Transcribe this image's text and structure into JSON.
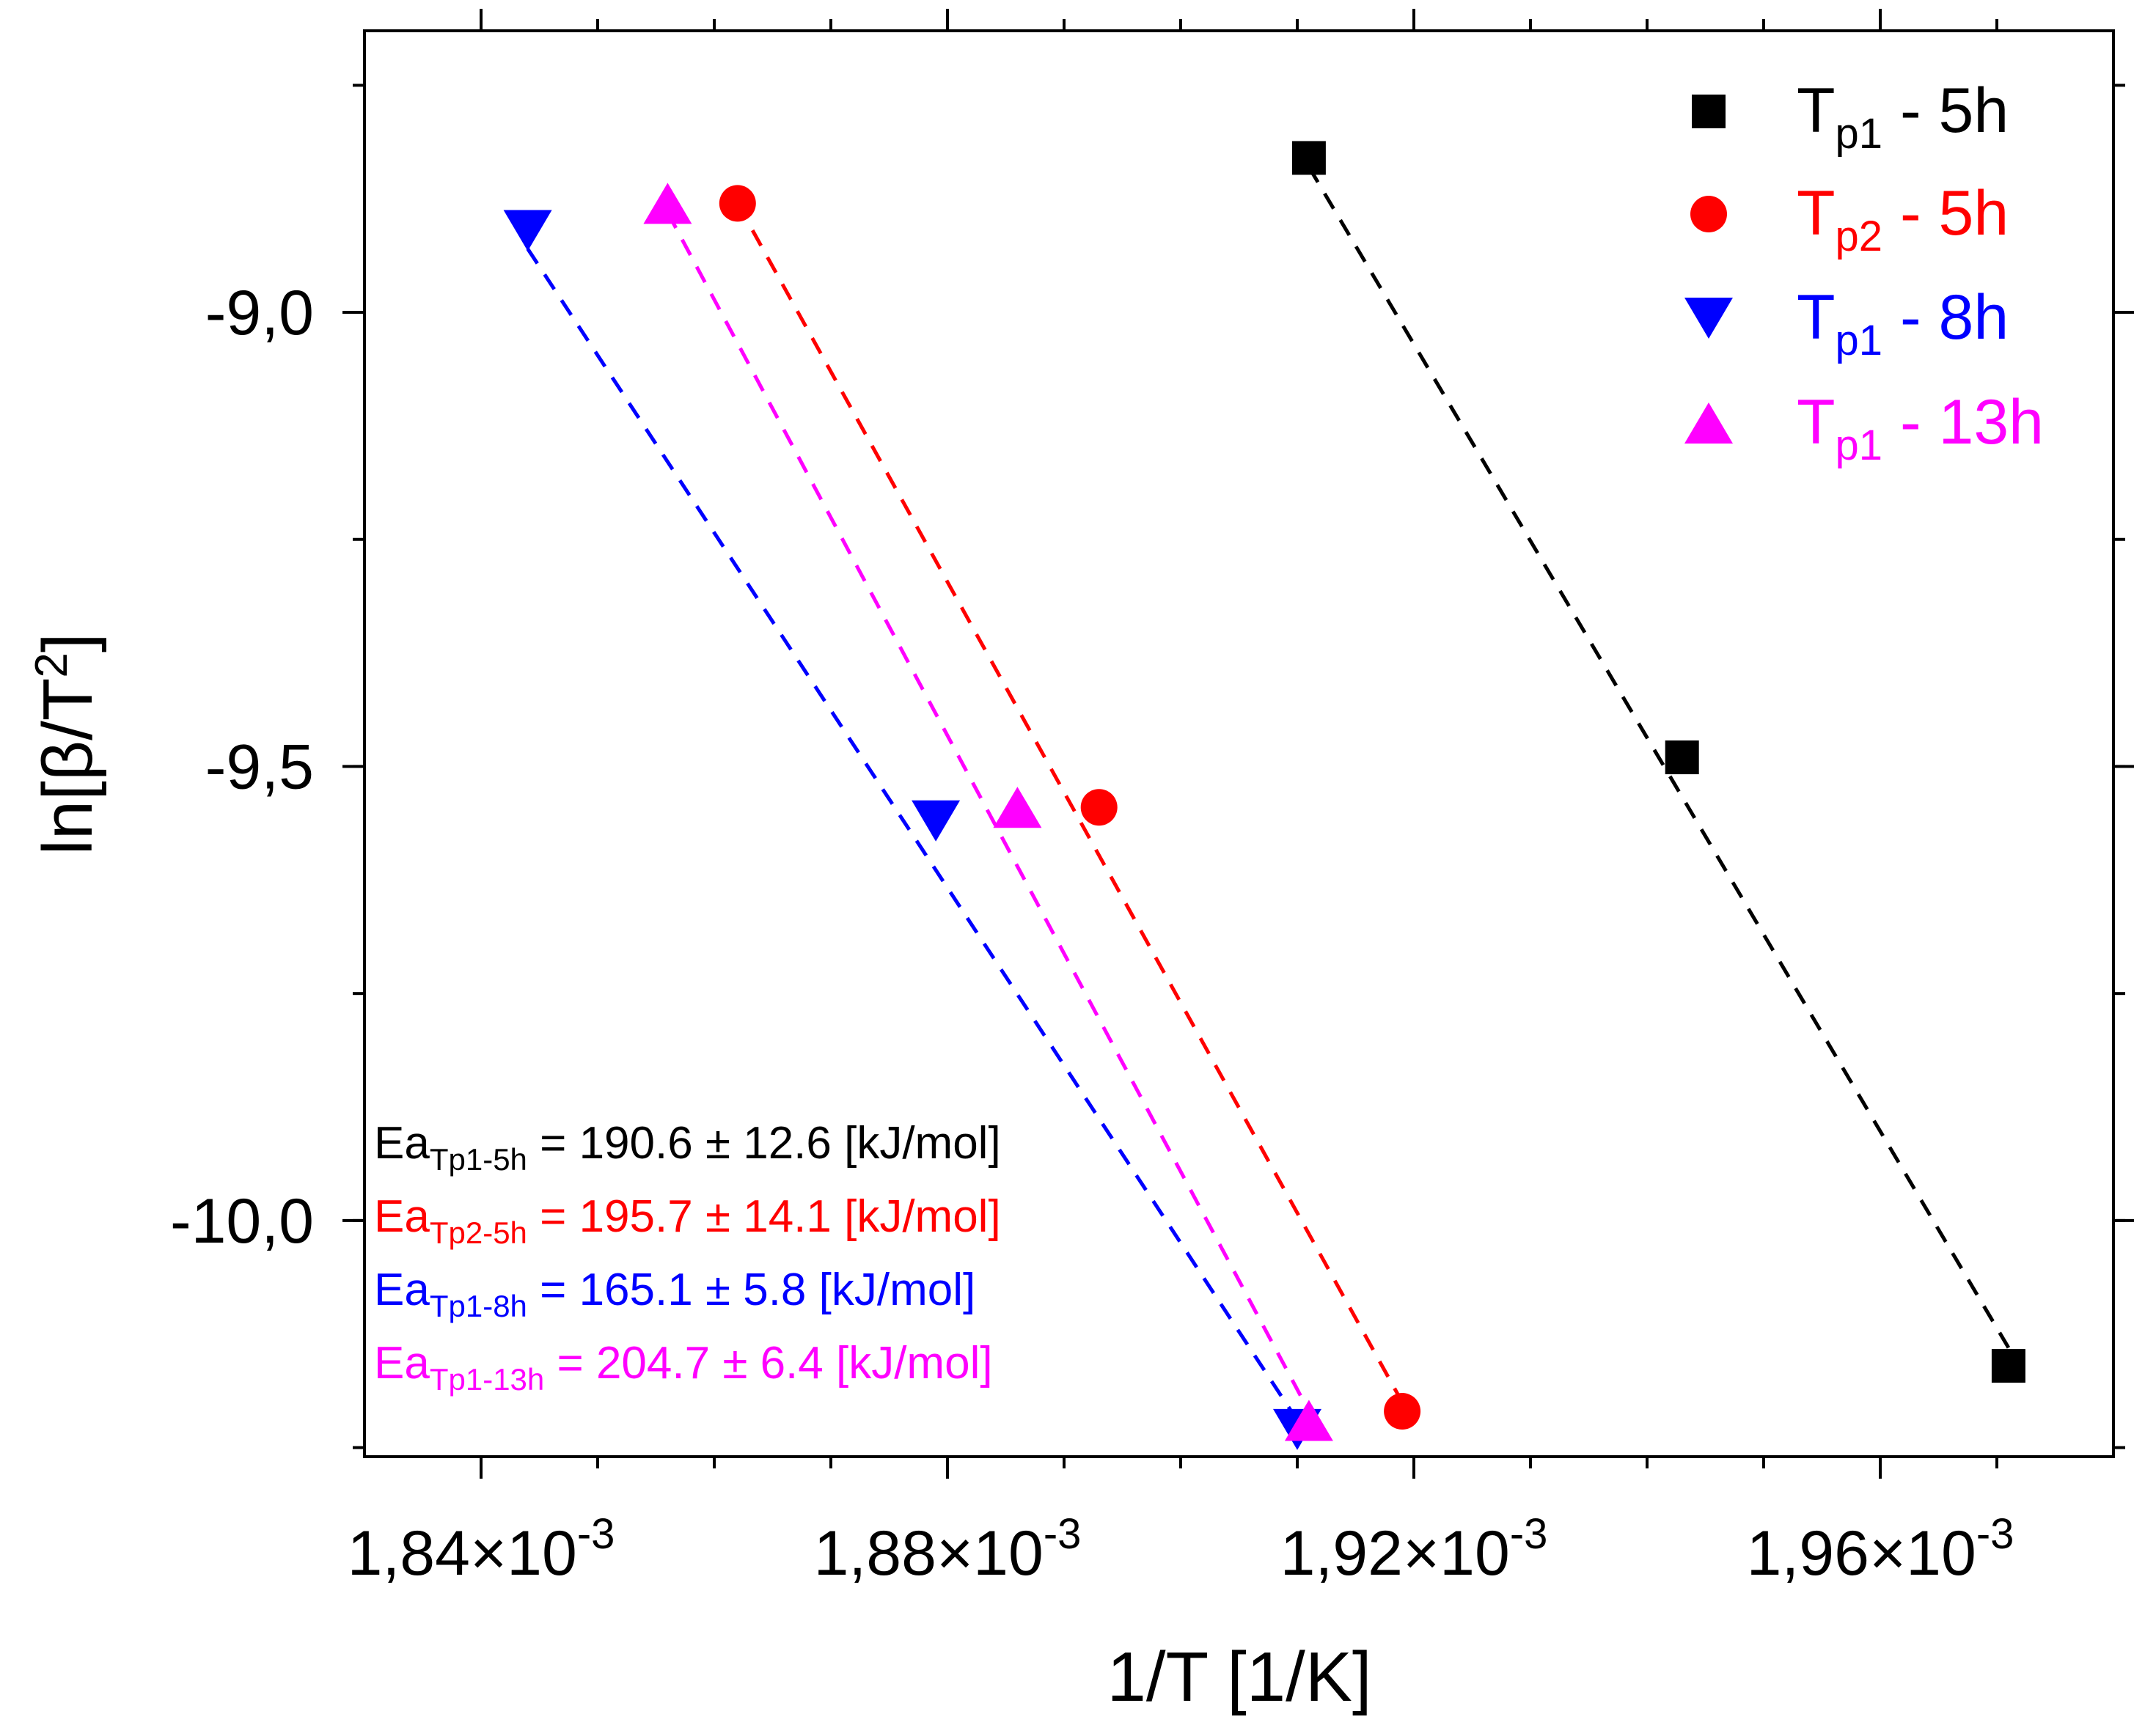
{
  "chart_data": {
    "type": "scatter",
    "title": "",
    "xlabel": "1/T [1/K]",
    "ylabel": "ln[β/T²]",
    "ylabel_parts": {
      "main": "ln[β/T",
      "sup": "2",
      "end": "]"
    },
    "xlim": [
      0.00183,
      0.00198
    ],
    "ylim": [
      -10.26,
      -8.69
    ],
    "x_ticks": [
      {
        "value": 0.00184,
        "label": "1,84×10",
        "exp": "-3"
      },
      {
        "value": 0.00188,
        "label": "1,88×10",
        "exp": "-3"
      },
      {
        "value": 0.00192,
        "label": "1,92×10",
        "exp": "-3"
      },
      {
        "value": 0.00196,
        "label": "1,96×10",
        "exp": "-3"
      }
    ],
    "x_minor_step": 1e-05,
    "y_ticks": [
      {
        "value": -9.0,
        "label": "-9,0"
      },
      {
        "value": -9.5,
        "label": "-9,5"
      },
      {
        "value": -10.0,
        "label": "-10,0"
      }
    ],
    "y_minor_step": 0.25,
    "grid": false,
    "legend_position": "top-right",
    "series": [
      {
        "name": "Tp1 - 5h",
        "legend_main": "T",
        "legend_sub": "p1",
        "legend_rest": " - 5h",
        "color": "#000000",
        "marker": "square",
        "x": [
          0.001911,
          0.001943,
          0.001971
        ],
        "y": [
          -8.83,
          -9.49,
          -10.16
        ],
        "fit_line": {
          "x": [
            0.001911,
            0.001971
          ],
          "y": [
            -8.84,
            -10.14
          ]
        },
        "annotation": {
          "main": "Ea",
          "sub": "Tp1-5h",
          "rest": " = 190.6 ± 12.6 [kJ/mol]"
        }
      },
      {
        "name": "Tp2 - 5h",
        "legend_main": "T",
        "legend_sub": "p2",
        "legend_rest": " - 5h",
        "color": "#ff0000",
        "marker": "circle",
        "x": [
          0.001862,
          0.001893,
          0.001919
        ],
        "y": [
          -8.88,
          -9.545,
          -10.21
        ],
        "fit_line": {
          "x": [
            0.001862,
            0.001919
          ],
          "y": [
            -8.88,
            -10.2
          ]
        },
        "annotation": {
          "main": "Ea",
          "sub": "Tp2-5h",
          "rest": " = 195.7 ± 14.1 [kJ/mol]"
        }
      },
      {
        "name": "Tp1 - 8h",
        "legend_main": "T",
        "legend_sub": "p1",
        "legend_rest": " - 8h",
        "color": "#0000ff",
        "marker": "triangle-down",
        "x": [
          0.001844,
          0.001879,
          0.00191
        ],
        "y": [
          -8.91,
          -9.56,
          -10.23
        ],
        "fit_line": {
          "x": [
            0.001844,
            0.00191
          ],
          "y": [
            -8.93,
            -10.22
          ]
        },
        "annotation": {
          "main": "Ea",
          "sub": "Tp1-8h",
          "rest": " = 165.1 ± 5.8 [kJ/mol]"
        }
      },
      {
        "name": "Tp1 - 13h",
        "legend_main": "T",
        "legend_sub": "p1",
        "legend_rest": " - 13h",
        "color": "#ff00ff",
        "marker": "triangle-up",
        "x": [
          0.001856,
          0.001886,
          0.001911
        ],
        "y": [
          -8.88,
          -9.545,
          -10.22
        ],
        "fit_line": {
          "x": [
            0.001856,
            0.001911
          ],
          "y": [
            -8.89,
            -10.21
          ]
        },
        "annotation": {
          "main": "Ea",
          "sub": "Tp1-13h",
          "rest": " = 204.7 ± 6.4 [kJ/mol]"
        }
      }
    ]
  }
}
